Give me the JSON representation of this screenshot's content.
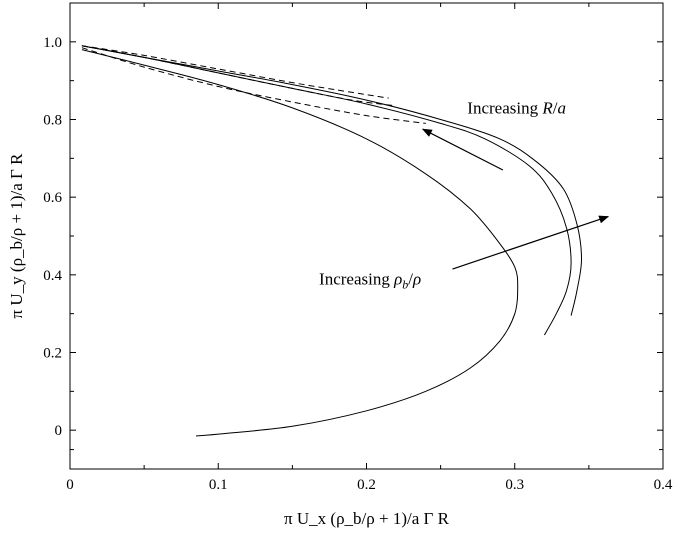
{
  "chart_data": {
    "type": "line",
    "xlabel": "π U_x (ρ_b/ρ + 1)/a Γ R",
    "ylabel": "π U_y (ρ_b/ρ + 1)/a Γ R",
    "xlim": [
      0,
      0.4
    ],
    "ylim": [
      -0.1,
      1.1
    ],
    "x_ticks": [
      0,
      0.1,
      0.2,
      0.3,
      0.4
    ],
    "x_tick_labels": [
      "0",
      "0.1",
      "0.2",
      "0.3",
      "0.4"
    ],
    "y_ticks": [
      0,
      0.2,
      0.4,
      0.6,
      0.8,
      1.0
    ],
    "y_tick_labels": [
      "0",
      "0.2",
      "0.4",
      "0.6",
      "0.8",
      "1.0"
    ],
    "grid": false,
    "series": [
      {
        "style": "solid",
        "x": [
          0.008,
          0.05,
          0.1,
          0.15,
          0.2,
          0.24,
          0.27,
          0.29,
          0.3,
          0.302,
          0.3,
          0.29,
          0.27,
          0.24,
          0.2,
          0.15,
          0.1,
          0.085
        ],
        "y": [
          0.98,
          0.94,
          0.89,
          0.83,
          0.75,
          0.66,
          0.57,
          0.48,
          0.42,
          0.37,
          0.3,
          0.23,
          0.16,
          0.1,
          0.05,
          0.01,
          -0.01,
          -0.015
        ]
      },
      {
        "style": "solid",
        "x": [
          0.008,
          0.05,
          0.1,
          0.15,
          0.2,
          0.25,
          0.28,
          0.31,
          0.325,
          0.335,
          0.338,
          0.335,
          0.328,
          0.32
        ],
        "y": [
          0.99,
          0.96,
          0.92,
          0.88,
          0.84,
          0.79,
          0.75,
          0.68,
          0.61,
          0.52,
          0.43,
          0.36,
          0.3,
          0.245
        ]
      },
      {
        "style": "solid",
        "x": [
          0.008,
          0.05,
          0.1,
          0.15,
          0.2,
          0.25,
          0.29,
          0.315,
          0.333,
          0.342,
          0.345,
          0.342,
          0.338
        ],
        "y": [
          0.99,
          0.96,
          0.925,
          0.89,
          0.85,
          0.8,
          0.75,
          0.69,
          0.62,
          0.53,
          0.44,
          0.36,
          0.295
        ]
      },
      {
        "style": "dashed",
        "x": [
          0.008,
          0.05,
          0.1,
          0.15,
          0.2,
          0.24
        ],
        "y": [
          0.985,
          0.935,
          0.885,
          0.845,
          0.81,
          0.79
        ]
      },
      {
        "style": "dashed",
        "x": [
          0.008,
          0.05,
          0.1,
          0.15,
          0.19,
          0.22
        ],
        "y": [
          0.99,
          0.96,
          0.92,
          0.88,
          0.85,
          0.835
        ]
      },
      {
        "style": "dashed",
        "x": [
          0.008,
          0.05,
          0.1,
          0.15,
          0.19,
          0.215
        ],
        "y": [
          0.99,
          0.965,
          0.93,
          0.895,
          0.87,
          0.855
        ]
      }
    ],
    "annotations": [
      {
        "name": "increasing-ratio",
        "text_prefix": "Increasing ",
        "text_italic_a": "R",
        "text_mid": "/",
        "text_italic_b": "a",
        "text_x": 0.268,
        "text_y": 0.815,
        "arrow_from": [
          0.292,
          0.67
        ],
        "arrow_to": [
          0.238,
          0.775
        ]
      },
      {
        "name": "increasing-density",
        "text_prefix": "Increasing ",
        "text_italic_a": "ρ",
        "text_sub": "b",
        "text_mid": "/",
        "text_italic_b": "ρ",
        "text_x": 0.168,
        "text_y": 0.375,
        "arrow_from": [
          0.258,
          0.415
        ],
        "arrow_to": [
          0.363,
          0.55
        ]
      }
    ]
  }
}
